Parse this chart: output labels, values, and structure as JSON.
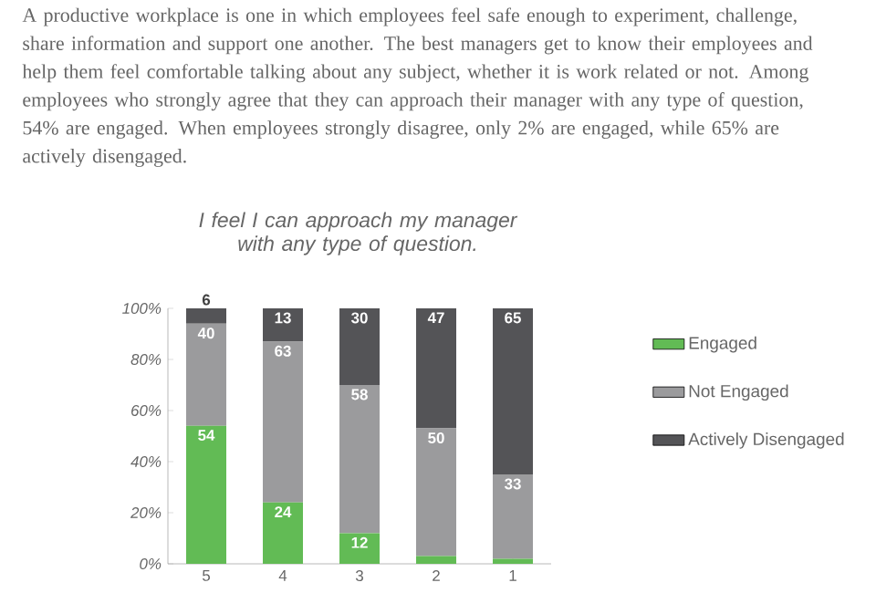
{
  "chart_data": {
    "type": "bar",
    "stacked": true,
    "title": "I feel I can approach my manager with any type of question.",
    "annotations": [
      "A productive workplace is one in which employees feel safe enough to experiment, challenge, share information and support one another. The best managers get to know their employees and help them feel comfortable talking about any subject, whether it is work related or not. Among employees who strongly agree that they can approach their manager with any type of question, 54% are engaged. When employees strongly disagree, only 2% are engaged, while 65% are actively disengaged."
    ],
    "categories": [
      "5",
      "4",
      "3",
      "2",
      "1"
    ],
    "series": [
      {
        "name": "Engaged",
        "color": "#62bb55",
        "values": [
          54,
          24,
          12,
          3,
          2
        ],
        "value_labels": [
          "54",
          "24",
          "12",
          null,
          null
        ]
      },
      {
        "name": "Not Engaged",
        "color": "#9b9b9d",
        "values": [
          40,
          63,
          58,
          50,
          33
        ],
        "value_labels": [
          "40",
          "63",
          "58",
          "50",
          "33"
        ]
      },
      {
        "name": "Actively Disengaged",
        "color": "#545457",
        "values": [
          6,
          13,
          30,
          47,
          65
        ],
        "value_labels": [
          "6",
          "13",
          "30",
          "47",
          "65"
        ]
      }
    ],
    "ylim": [
      0,
      100
    ],
    "yticks": [
      {
        "value": 0,
        "label": "0%"
      },
      {
        "value": 20,
        "label": "20%"
      },
      {
        "value": 40,
        "label": "40%"
      },
      {
        "value": 60,
        "label": "60%"
      },
      {
        "value": 80,
        "label": "80%"
      },
      {
        "value": 100,
        "label": "100%"
      }
    ],
    "legend": "right"
  }
}
